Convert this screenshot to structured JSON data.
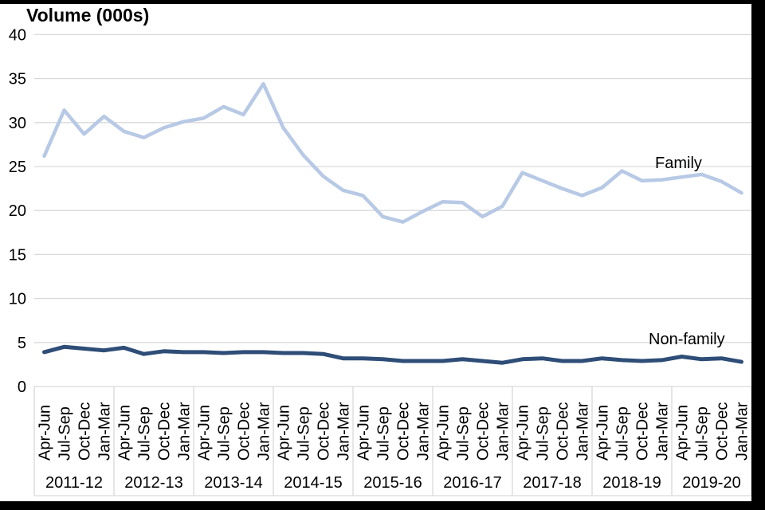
{
  "header": {
    "title": "Volume (000s)"
  },
  "annotations": {
    "family_label": "Family",
    "nonfamily_label": "Non-family"
  },
  "colors": {
    "family_line": "#b7c9e5",
    "nonfamily_line": "#2e4d77",
    "gridline": "#d9d9d9",
    "label_box_border": "#d9d9d9",
    "text": "#000000",
    "frame_border": "#000000",
    "background": "#ffffff"
  },
  "chart_data": {
    "type": "line",
    "title": "Volume (000s)",
    "ylabel": "Volume (000s)",
    "xlabel": "",
    "ylim": [
      0,
      40
    ],
    "y_ticks": [
      0,
      5,
      10,
      15,
      20,
      25,
      30,
      35,
      40
    ],
    "grid": "horizontal",
    "legend_position": "inline-right-of-lines",
    "quarters": [
      "Apr-Jun",
      "Jul-Sep",
      "Oct-Dec",
      "Jan-Mar"
    ],
    "year_groups": [
      "2011-12",
      "2012-13",
      "2013-14",
      "2014-15",
      "2015-16",
      "2016-17",
      "2017-18",
      "2018-19",
      "2019-20"
    ],
    "series": [
      {
        "name": "Family",
        "color": "#b7c9e5",
        "stroke_width": 4.5,
        "values": [
          26.2,
          31.4,
          28.7,
          30.7,
          29.0,
          28.3,
          29.4,
          30.1,
          30.5,
          31.8,
          30.9,
          34.4,
          29.4,
          26.3,
          23.9,
          22.3,
          21.7,
          19.3,
          18.7,
          19.9,
          21.0,
          20.9,
          19.3,
          20.5,
          24.3,
          23.4,
          22.5,
          21.7,
          22.6,
          24.5,
          23.4,
          23.5,
          23.8,
          24.1,
          23.3,
          22.0
        ]
      },
      {
        "name": "Non-family",
        "color": "#2e4d77",
        "stroke_width": 5,
        "values": [
          3.9,
          4.5,
          4.3,
          4.1,
          4.4,
          3.7,
          4.0,
          3.9,
          3.9,
          3.8,
          3.9,
          3.9,
          3.8,
          3.8,
          3.7,
          3.2,
          3.2,
          3.1,
          2.9,
          2.9,
          2.9,
          3.1,
          2.9,
          2.7,
          3.1,
          3.2,
          2.9,
          2.9,
          3.2,
          3.0,
          2.9,
          3.0,
          3.4,
          3.1,
          3.2,
          2.8
        ]
      }
    ]
  }
}
